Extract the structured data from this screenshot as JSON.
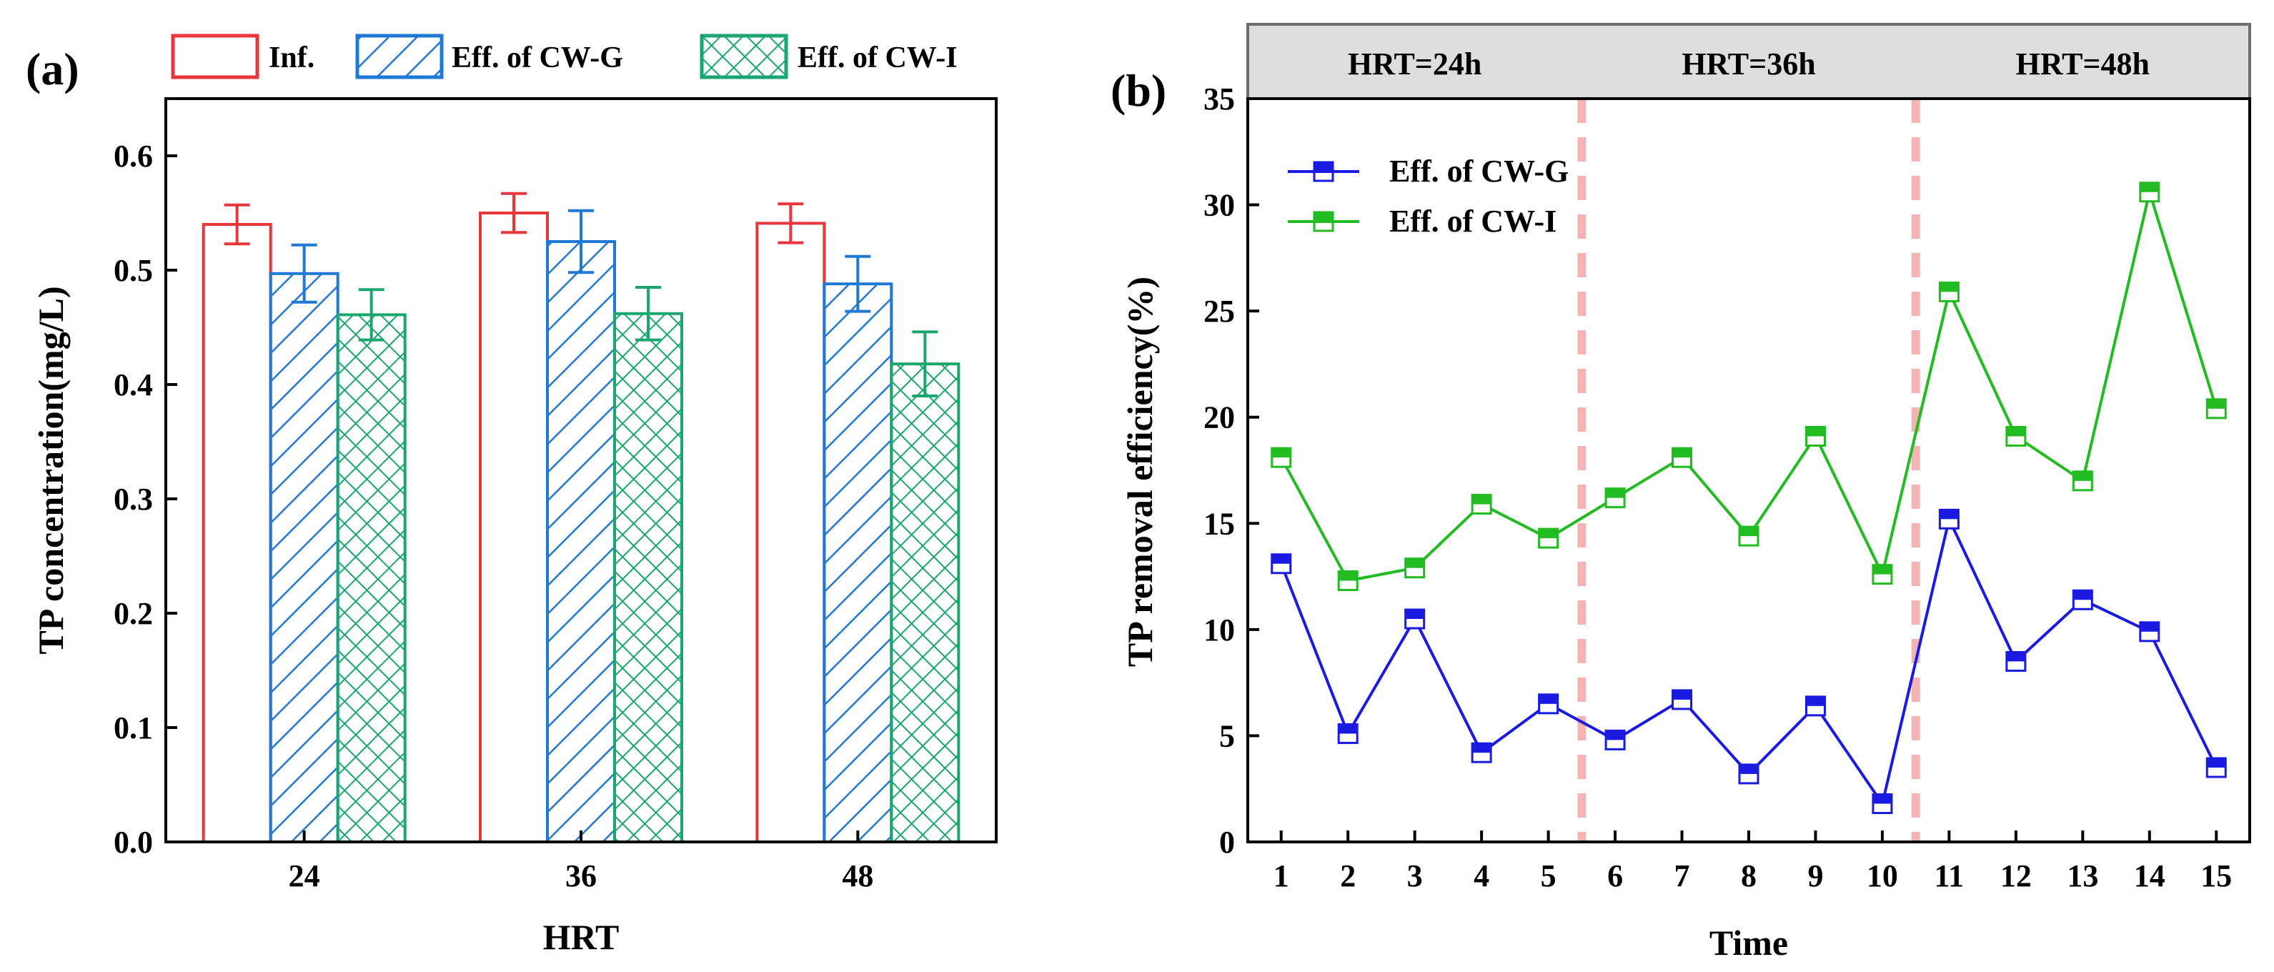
{
  "panel_a_label": "(a)",
  "panel_b_label": "(b)",
  "chart_data": [
    {
      "type": "bar",
      "title": "",
      "xlabel": "HRT",
      "ylabel": "TP concentration(mg/L)",
      "ylim": [
        0,
        0.65
      ],
      "yticks": [
        0.0,
        0.1,
        0.2,
        0.3,
        0.4,
        0.5,
        0.6
      ],
      "ytick_labels": [
        "0.0",
        "0.1",
        "0.2",
        "0.3",
        "0.4",
        "0.5",
        "0.6"
      ],
      "categories": [
        "24",
        "36",
        "48"
      ],
      "legend_position": "top",
      "series": [
        {
          "name": "Inf.",
          "color": "#e8363b",
          "pattern": "none",
          "values": [
            0.54,
            0.55,
            0.541
          ],
          "errors": [
            0.017,
            0.017,
            0.017
          ]
        },
        {
          "name": "Eff. of CW-G",
          "color": "#1f78d4",
          "pattern": "diagonal",
          "values": [
            0.497,
            0.525,
            0.488
          ],
          "errors": [
            0.025,
            0.027,
            0.024
          ]
        },
        {
          "name": "Eff. of CW-I",
          "color": "#1aa66e",
          "pattern": "crosshatch",
          "values": [
            0.461,
            0.462,
            0.418
          ],
          "errors": [
            0.022,
            0.023,
            0.028
          ]
        }
      ]
    },
    {
      "type": "line",
      "title": "",
      "xlabel": "Time",
      "ylabel": "TP removal efficiency(%)",
      "ylim": [
        0,
        35
      ],
      "yticks": [
        0,
        5,
        10,
        15,
        20,
        25,
        30,
        35
      ],
      "ytick_labels": [
        "0",
        "5",
        "10",
        "15",
        "20",
        "25",
        "30",
        "35"
      ],
      "x": [
        1,
        2,
        3,
        4,
        5,
        6,
        7,
        8,
        9,
        10,
        11,
        12,
        13,
        14,
        15
      ],
      "xtick_labels": [
        "1",
        "2",
        "3",
        "4",
        "5",
        "6",
        "7",
        "8",
        "9",
        "10",
        "11",
        "12",
        "13",
        "14",
        "15"
      ],
      "xlim": [
        0.5,
        15.5
      ],
      "legend_position": "top-left",
      "phases": [
        {
          "label": "HRT=24h",
          "x_start": 0.5,
          "x_end": 5.5
        },
        {
          "label": "HRT=36h",
          "x_start": 5.5,
          "x_end": 10.5
        },
        {
          "label": "HRT=48h",
          "x_start": 10.5,
          "x_end": 15.5
        }
      ],
      "phase_dividers": [
        5.5,
        10.5
      ],
      "divider_color": "#f4b4b4",
      "series": [
        {
          "name": "Eff. of CW-G",
          "color": "#1a1ae0",
          "values": [
            13.1,
            5.1,
            10.5,
            4.2,
            6.5,
            4.8,
            6.7,
            3.2,
            6.4,
            1.8,
            15.2,
            8.5,
            11.4,
            9.9,
            3.5
          ]
        },
        {
          "name": "Eff. of CW-I",
          "color": "#22bb22",
          "values": [
            18.1,
            12.3,
            12.9,
            15.9,
            14.3,
            16.2,
            18.1,
            14.4,
            19.1,
            12.6,
            25.9,
            19.1,
            17.0,
            30.6,
            20.4
          ]
        }
      ]
    }
  ]
}
